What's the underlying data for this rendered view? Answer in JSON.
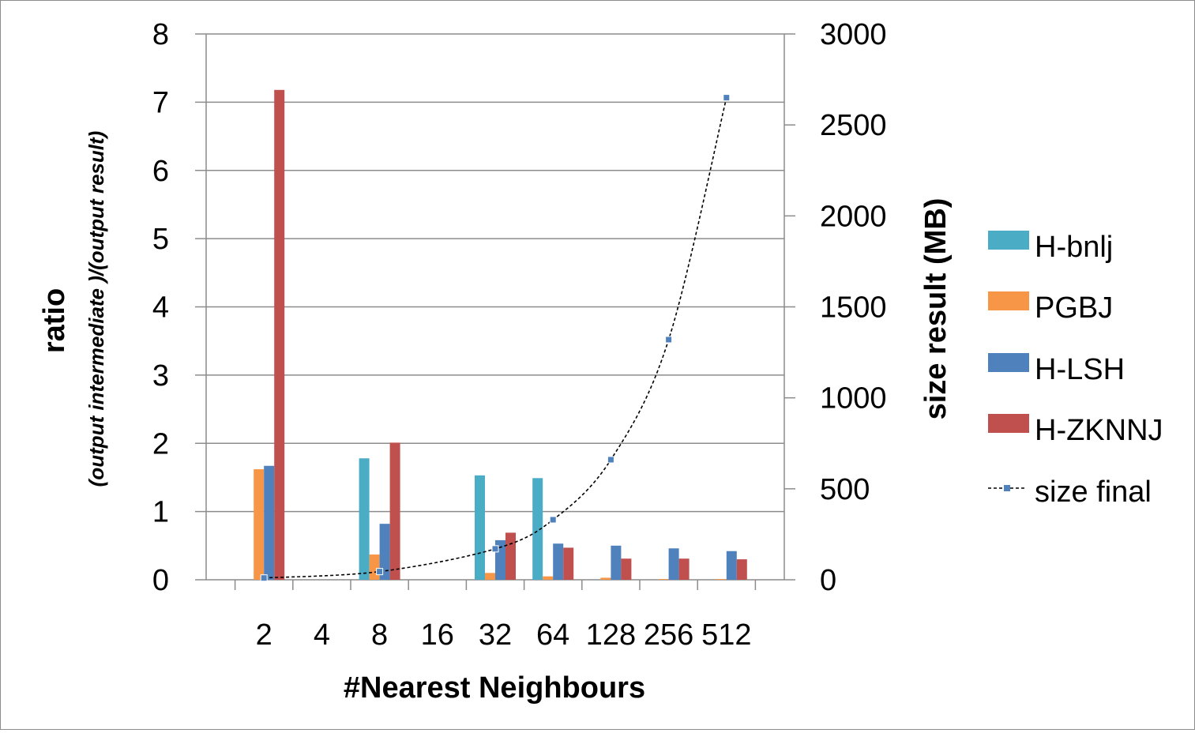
{
  "chart_data": {
    "type": "bar",
    "title": "",
    "xlabel": "#Nearest Neighbours",
    "ylabel": "ratio",
    "ylabel_sub": "(output intermediate )/(output result)",
    "y2label": "size result  (MB)",
    "categories": [
      "2",
      "4",
      "8",
      "16",
      "32",
      "64",
      "128",
      "256",
      "512"
    ],
    "ylim": [
      0,
      8
    ],
    "y2lim": [
      0,
      3000
    ],
    "yticks": [
      "0",
      "1",
      "2",
      "3",
      "4",
      "5",
      "6",
      "7",
      "8"
    ],
    "y2ticks": [
      "0",
      "500",
      "1000",
      "1500",
      "2000",
      "2500",
      "3000"
    ],
    "grid": true,
    "legend_position": "right",
    "series": [
      {
        "name": "H-bnlj",
        "color": "#4bacc6",
        "axis": "left",
        "values": [
          0,
          0,
          1.78,
          0,
          1.53,
          1.49,
          0,
          0,
          0
        ]
      },
      {
        "name": "PGBJ",
        "color": "#f79646",
        "axis": "left",
        "values": [
          1.62,
          0,
          0.37,
          0,
          0.1,
          0.05,
          0.03,
          0.01,
          0.01
        ]
      },
      {
        "name": "H-LSH",
        "color": "#4f81bd",
        "axis": "left",
        "values": [
          1.67,
          0,
          0.82,
          0,
          0.58,
          0.53,
          0.5,
          0.46,
          0.42
        ]
      },
      {
        "name": "H-ZKNNJ",
        "color": "#c0504d",
        "axis": "left",
        "values": [
          7.18,
          0,
          2.01,
          0,
          0.69,
          0.47,
          0.31,
          0.31,
          0.3
        ]
      },
      {
        "name": "size final",
        "color": "#4f81bd",
        "axis": "right",
        "type": "line",
        "values": [
          10,
          null,
          45,
          null,
          170,
          330,
          660,
          1320,
          2650
        ]
      }
    ]
  }
}
